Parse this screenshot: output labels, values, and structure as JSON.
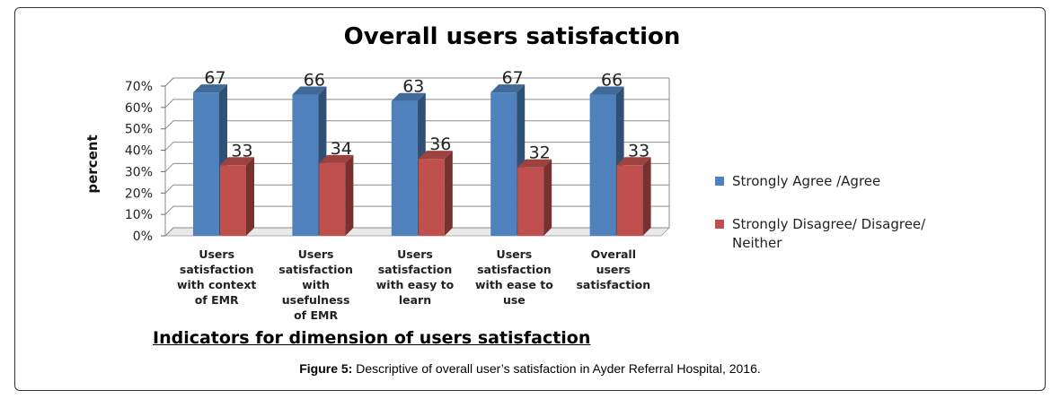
{
  "chart_data": {
    "type": "bar",
    "title": "Overall users satisfaction",
    "xlabel": "Indicators for dimension of users satisfaction",
    "ylabel": "percent",
    "ylim": [
      0,
      70
    ],
    "yticks": [
      "0%",
      "10%",
      "20%",
      "30%",
      "40%",
      "50%",
      "60%",
      "70%"
    ],
    "categories": [
      "Users satisfaction with context of EMR",
      "Users satisfaction with usefulness of EMR",
      "Users satisfaction with easy to learn",
      "Users satisfaction with ease to use",
      "Overall users satisfaction"
    ],
    "category_lines": [
      [
        "Users",
        "satisfaction",
        "with context",
        "of EMR"
      ],
      [
        "Users",
        "satisfaction",
        "with",
        "usefulness",
        "of EMR"
      ],
      [
        "Users",
        "satisfaction",
        "with easy to",
        "learn"
      ],
      [
        "Users",
        "satisfaction",
        "with ease to",
        "use"
      ],
      [
        "Overall",
        "users",
        "satisfaction"
      ]
    ],
    "series": [
      {
        "name": "Strongly Agree /Agree",
        "values": [
          67,
          66,
          63,
          67,
          66
        ],
        "color": "#4F81BD"
      },
      {
        "name": "Strongly Disagree/  Disagree/ Neither",
        "values": [
          33,
          34,
          36,
          32,
          33
        ],
        "color": "#C0504D"
      }
    ],
    "legend_position": "right",
    "legend_lines": [
      [
        "Strongly Agree /Agree"
      ],
      [
        "Strongly Disagree/  Disagree/",
        "Neither"
      ]
    ],
    "grid": true
  },
  "caption": {
    "label": "Figure 5:",
    "text": " Descriptive of overall user’s satisfaction in Ayder Referral Hospital, 2016."
  }
}
